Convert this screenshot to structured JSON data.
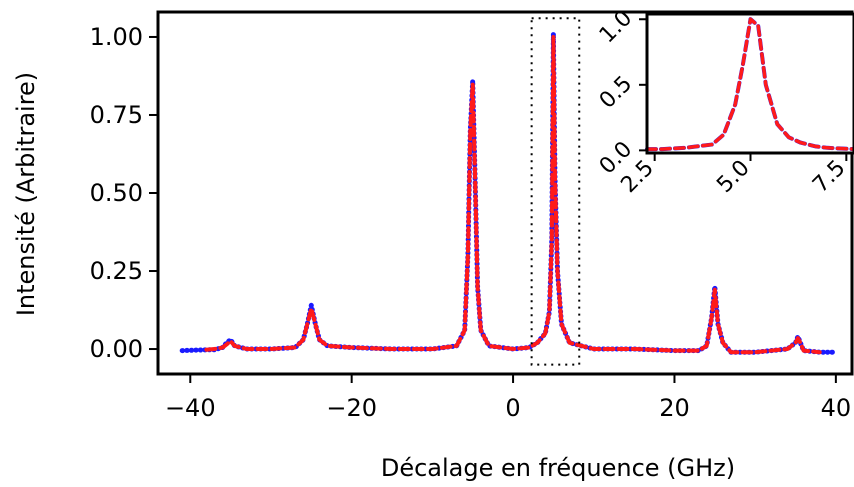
{
  "chart_data": [
    {
      "type": "line",
      "xlabel": "Décalage en fréquence (GHz)",
      "ylabel": "Intensité (Arbitraire)",
      "xlim": [
        -44,
        42
      ],
      "ylim": [
        -0.08,
        1.08
      ],
      "xticks": [
        -40,
        -20,
        0,
        20,
        40
      ],
      "xtick_labels": [
        "−40",
        "−20",
        "0",
        "20",
        "40"
      ],
      "yticks": [
        0.0,
        0.25,
        0.5,
        0.75,
        1.0
      ],
      "ytick_labels": [
        "0.00",
        "0.25",
        "0.50",
        "0.75",
        "1.00"
      ],
      "grid": false,
      "highlight_box": {
        "x": [
          2.3,
          8.2
        ],
        "y": [
          -0.05,
          1.06
        ],
        "style": "dotted"
      },
      "series": [
        {
          "color": "#1a1aff",
          "style": "thick-dotted",
          "x": [
            -41,
            -39,
            -37,
            -36,
            -35.5,
            -35,
            -34.5,
            -33,
            -30,
            -27,
            -26,
            -25.5,
            -25,
            -24.5,
            -24,
            -23,
            -20,
            -15,
            -10,
            -7,
            -6,
            -5.6,
            -5.3,
            -5,
            -4.7,
            -4.4,
            -4,
            -3,
            0,
            2,
            3,
            4,
            4.5,
            4.8,
            5,
            5.2,
            5.5,
            6,
            7,
            10,
            15,
            20,
            23,
            24,
            24.6,
            25,
            25.4,
            26,
            27,
            30,
            34,
            35,
            35.3,
            35.6,
            36,
            38,
            40
          ],
          "values": [
            -0.005,
            -0.003,
            -0.002,
            0.005,
            0.02,
            0.03,
            0.01,
            0.0,
            0.0,
            0.005,
            0.03,
            0.08,
            0.14,
            0.08,
            0.03,
            0.01,
            0.005,
            0.0,
            0.0,
            0.01,
            0.06,
            0.3,
            0.7,
            0.86,
            0.55,
            0.2,
            0.06,
            0.01,
            0.0,
            0.005,
            0.02,
            0.05,
            0.12,
            0.35,
            1.01,
            0.55,
            0.25,
            0.08,
            0.02,
            0.0,
            0.0,
            -0.005,
            -0.005,
            0.01,
            0.1,
            0.2,
            0.08,
            0.02,
            -0.01,
            -0.01,
            0.0,
            0.02,
            0.04,
            0.02,
            -0.005,
            -0.01,
            -0.01
          ]
        },
        {
          "color": "#ff1a1a",
          "style": "dashed",
          "x": [
            -38,
            -37,
            -36,
            -35.5,
            -35,
            -34.5,
            -33,
            -30,
            -27,
            -26,
            -25.5,
            -25,
            -24.5,
            -24,
            -23,
            -20,
            -15,
            -10,
            -7,
            -6,
            -5.6,
            -5.3,
            -5,
            -4.7,
            -4.4,
            -4,
            -3,
            0,
            2,
            3,
            4,
            4.5,
            4.8,
            5,
            5.2,
            5.5,
            6,
            7,
            10,
            15,
            20,
            23,
            24,
            24.6,
            25,
            25.4,
            26,
            27,
            30,
            34,
            35,
            35.3,
            35.6,
            36,
            38
          ],
          "values": [
            -0.002,
            0.0,
            0.005,
            0.015,
            0.025,
            0.01,
            0.0,
            0.0,
            0.005,
            0.03,
            0.08,
            0.13,
            0.08,
            0.03,
            0.01,
            0.005,
            0.0,
            0.0,
            0.01,
            0.06,
            0.3,
            0.7,
            0.85,
            0.55,
            0.2,
            0.06,
            0.01,
            0.0,
            0.005,
            0.02,
            0.05,
            0.12,
            0.35,
            1.0,
            0.55,
            0.25,
            0.08,
            0.02,
            0.0,
            0.0,
            -0.005,
            -0.005,
            0.01,
            0.1,
            0.19,
            0.08,
            0.02,
            -0.01,
            -0.01,
            0.0,
            0.02,
            0.035,
            0.02,
            -0.005,
            -0.01
          ]
        }
      ]
    },
    {
      "type": "line",
      "xlim": [
        2.3,
        7.7
      ],
      "ylim": [
        -0.02,
        1.04
      ],
      "xticks": [
        2.5,
        5.0,
        7.5
      ],
      "xtick_labels": [
        "2.5",
        "5.0",
        "7.5"
      ],
      "yticks": [
        0,
        0.5,
        1.0
      ],
      "ytick_labels": [
        "0.0",
        "0.5",
        "1.0"
      ],
      "series": [
        {
          "color": "#1a1aff",
          "style": "dashed",
          "x": [
            2.3,
            2.7,
            3.0,
            3.3,
            3.6,
            4.0,
            4.3,
            4.6,
            4.8,
            5.0,
            5.2,
            5.4,
            5.7,
            6.0,
            6.3,
            6.7,
            7.0,
            7.3,
            7.7
          ],
          "values": [
            0.01,
            0.01,
            0.015,
            0.02,
            0.03,
            0.045,
            0.12,
            0.35,
            0.65,
            1.0,
            0.95,
            0.5,
            0.2,
            0.1,
            0.06,
            0.03,
            0.02,
            0.015,
            0.01
          ]
        },
        {
          "color": "#ff1a1a",
          "style": "dashed",
          "x": [
            2.3,
            2.7,
            3.0,
            3.3,
            3.6,
            4.0,
            4.3,
            4.6,
            4.8,
            5.0,
            5.2,
            5.4,
            5.7,
            6.0,
            6.3,
            6.7,
            7.0,
            7.3,
            7.7
          ],
          "values": [
            0.01,
            0.01,
            0.015,
            0.02,
            0.03,
            0.045,
            0.12,
            0.35,
            0.65,
            1.0,
            0.95,
            0.5,
            0.2,
            0.1,
            0.06,
            0.03,
            0.02,
            0.015,
            0.01
          ]
        }
      ]
    }
  ]
}
